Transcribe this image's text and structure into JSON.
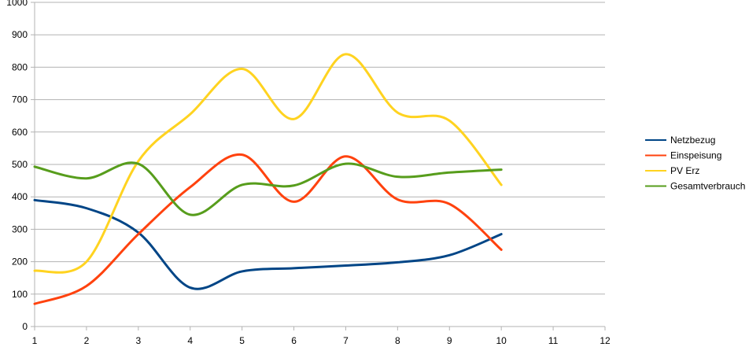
{
  "chart_data": {
    "type": "line",
    "title": "",
    "xlabel": "",
    "ylabel": "",
    "xlim": [
      1,
      12
    ],
    "ylim": [
      0,
      1000
    ],
    "x_ticks": [
      "1",
      "2",
      "3",
      "4",
      "5",
      "6",
      "7",
      "8",
      "9",
      "10",
      "11",
      "12"
    ],
    "y_ticks": [
      "0",
      "100",
      "200",
      "300",
      "400",
      "500",
      "600",
      "700",
      "800",
      "900",
      "1000"
    ],
    "grid": "horizontal",
    "smooth": true,
    "legend_position": "right",
    "x": [
      1,
      2,
      3,
      4,
      5,
      6,
      7,
      8,
      9,
      10
    ],
    "series": [
      {
        "name": "Netzbezug",
        "color": "#004586",
        "values": [
          390,
          365,
          290,
          120,
          170,
          180,
          188,
          198,
          220,
          285
        ]
      },
      {
        "name": "Einspeisung",
        "color": "#ff420e",
        "values": [
          70,
          125,
          285,
          430,
          530,
          385,
          525,
          392,
          378,
          237
        ]
      },
      {
        "name": "PV Erz",
        "color": "#ffd320",
        "values": [
          172,
          200,
          510,
          655,
          795,
          640,
          840,
          660,
          635,
          437
        ]
      },
      {
        "name": "Gesamtverbrauch",
        "color": "#579d1c",
        "values": [
          493,
          457,
          502,
          345,
          437,
          435,
          502,
          462,
          475,
          484
        ]
      }
    ]
  }
}
